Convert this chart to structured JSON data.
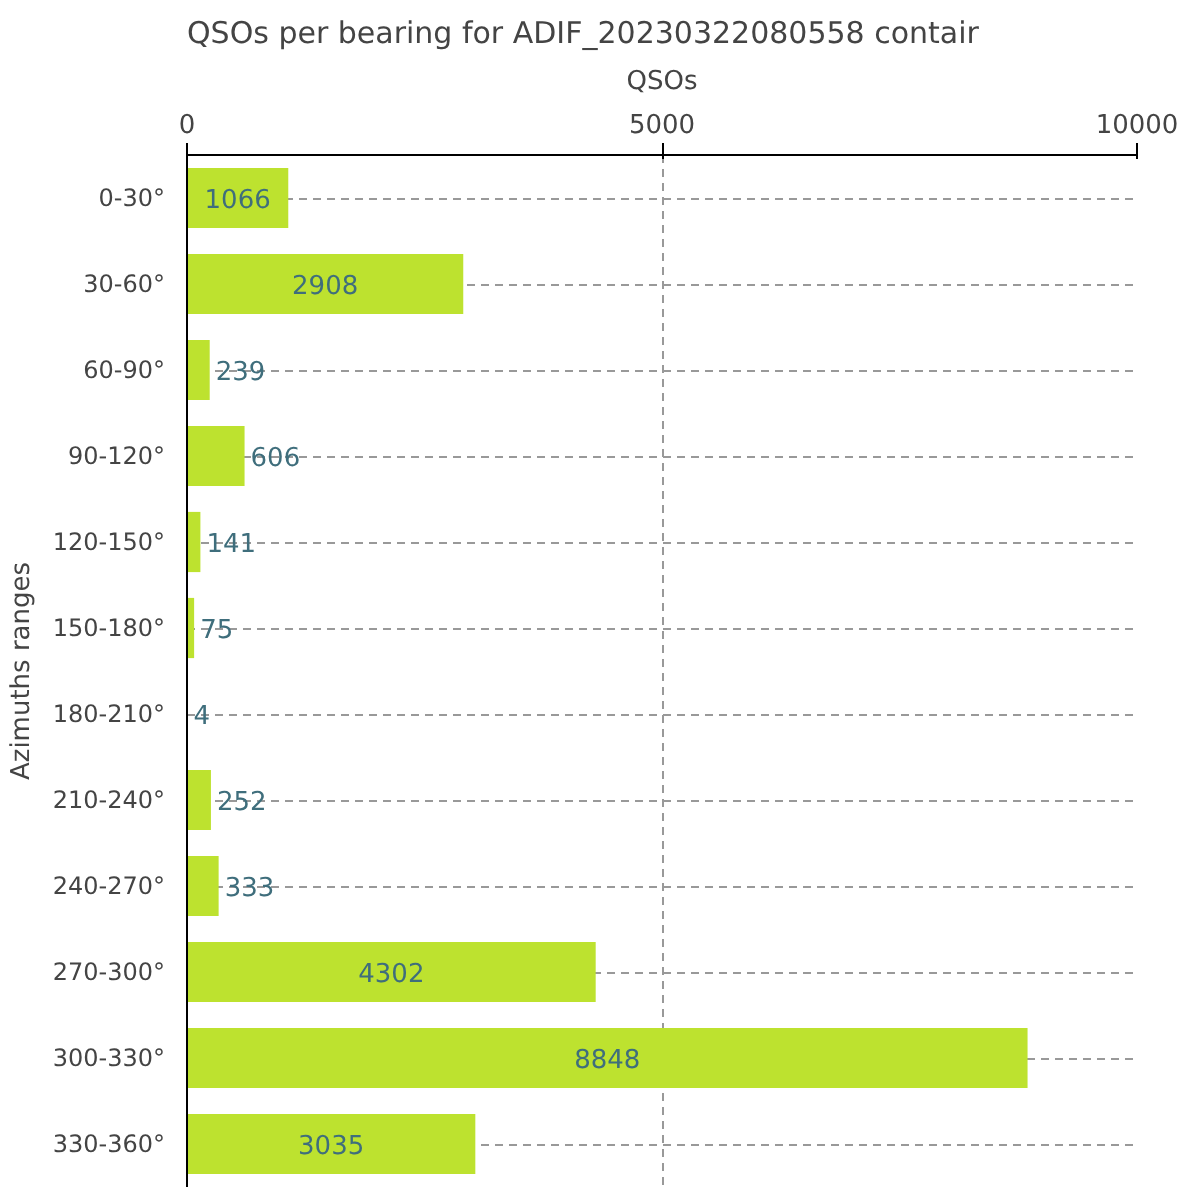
{
  "chart_data": {
    "type": "bar",
    "orientation": "horizontal",
    "title": "QSOs per bearing for ADIF_20230322080558 contair",
    "xlabel": "QSOs",
    "ylabel": "Azimuths ranges",
    "categories": [
      "0-30°",
      "30-60°",
      "60-90°",
      "90-120°",
      "120-150°",
      "150-180°",
      "180-210°",
      "210-240°",
      "240-270°",
      "270-300°",
      "300-330°",
      "330-360°"
    ],
    "values": [
      1066,
      2908,
      239,
      606,
      141,
      75,
      4,
      252,
      333,
      4302,
      8848,
      3035
    ],
    "color": "#bde22f",
    "xlim": [
      0,
      10000
    ],
    "xticks": [
      0,
      5000,
      10000
    ],
    "grid": true,
    "data_labels": true
  }
}
